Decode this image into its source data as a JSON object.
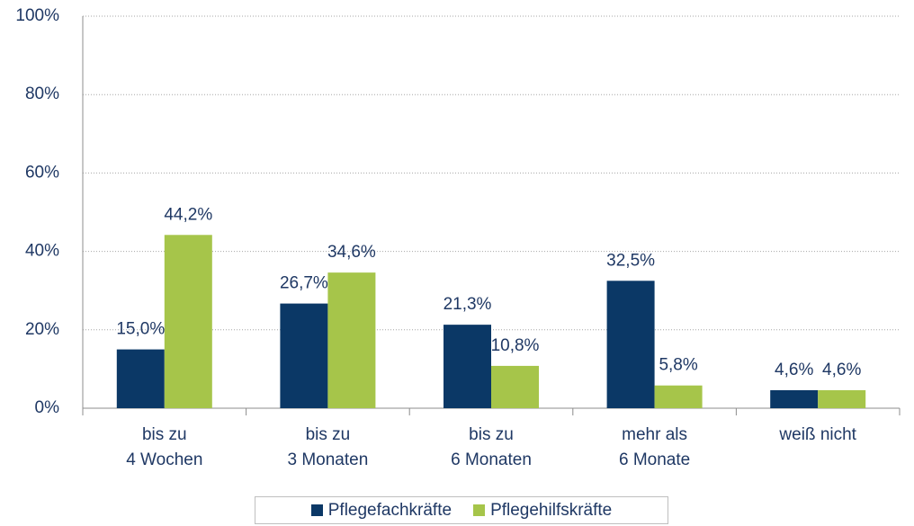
{
  "chart_data": {
    "type": "bar",
    "categories": [
      "bis zu\n4 Wochen",
      "bis zu\n3 Monaten",
      "bis zu\n6 Monaten",
      "mehr als\n6 Monate",
      "weiß nicht"
    ],
    "series": [
      {
        "name": "Pflegefachkräfte",
        "color": "#0b3866",
        "values": [
          15.0,
          26.7,
          21.3,
          32.5,
          4.6
        ],
        "value_labels": [
          "15,0%",
          "26,7%",
          "21,3%",
          "32,5%",
          "4,6%"
        ]
      },
      {
        "name": "Pflegehilfskräfte",
        "color": "#a6c54a",
        "values": [
          44.2,
          34.6,
          10.8,
          5.8,
          4.6
        ],
        "value_labels": [
          "44,2%",
          "34,6%",
          "10,8%",
          "5,8%",
          "4,6%"
        ]
      }
    ],
    "ylim": [
      0,
      100
    ],
    "yticks": [
      {
        "value": 0,
        "label": "0%"
      },
      {
        "value": 20,
        "label": "20%"
      },
      {
        "value": 40,
        "label": "40%"
      },
      {
        "value": 60,
        "label": "60%"
      },
      {
        "value": 80,
        "label": "80%"
      },
      {
        "value": 100,
        "label": "100%"
      }
    ],
    "grid": true,
    "legend": "bottom"
  }
}
